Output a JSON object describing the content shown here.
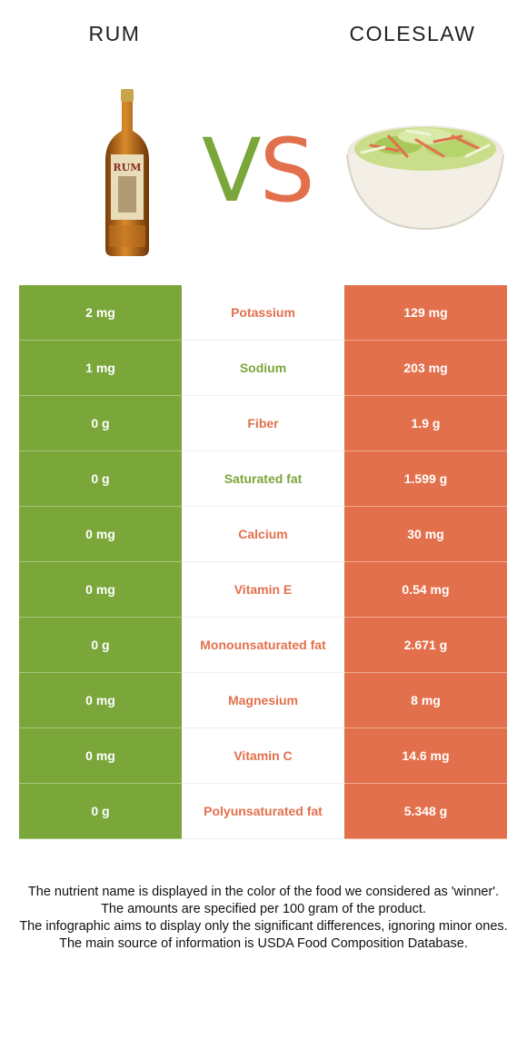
{
  "header": {
    "left_food": "RUM",
    "right_food": "COLESLAW",
    "vs_v": "V",
    "vs_s": "S"
  },
  "colors": {
    "left_accent": "#7aa63a",
    "right_accent": "#e2704c"
  },
  "images": {
    "left": "rum-bottle",
    "right": "coleslaw-bowl"
  },
  "rows": [
    {
      "left": "2 mg",
      "nutrient": "Potassium",
      "right": "129 mg",
      "winner": "right"
    },
    {
      "left": "1 mg",
      "nutrient": "Sodium",
      "right": "203 mg",
      "winner": "left"
    },
    {
      "left": "0 g",
      "nutrient": "Fiber",
      "right": "1.9 g",
      "winner": "right"
    },
    {
      "left": "0 g",
      "nutrient": "Saturated fat",
      "right": "1.599 g",
      "winner": "left"
    },
    {
      "left": "0 mg",
      "nutrient": "Calcium",
      "right": "30 mg",
      "winner": "right"
    },
    {
      "left": "0 mg",
      "nutrient": "Vitamin E",
      "right": "0.54 mg",
      "winner": "right"
    },
    {
      "left": "0 g",
      "nutrient": "Monounsaturated fat",
      "right": "2.671 g",
      "winner": "right"
    },
    {
      "left": "0 mg",
      "nutrient": "Magnesium",
      "right": "8 mg",
      "winner": "right"
    },
    {
      "left": "0 mg",
      "nutrient": "Vitamin C",
      "right": "14.6 mg",
      "winner": "right"
    },
    {
      "left": "0 g",
      "nutrient": "Polyunsaturated fat",
      "right": "5.348 g",
      "winner": "right"
    }
  ],
  "footer": {
    "line1": "The nutrient name is displayed in the color of the food we considered as 'winner'.",
    "line2": "The amounts are specified per 100 gram of the product.",
    "line3": "The infographic aims to display only the significant differences, ignoring minor ones.",
    "line4": "The main source of information is USDA Food Composition Database."
  }
}
